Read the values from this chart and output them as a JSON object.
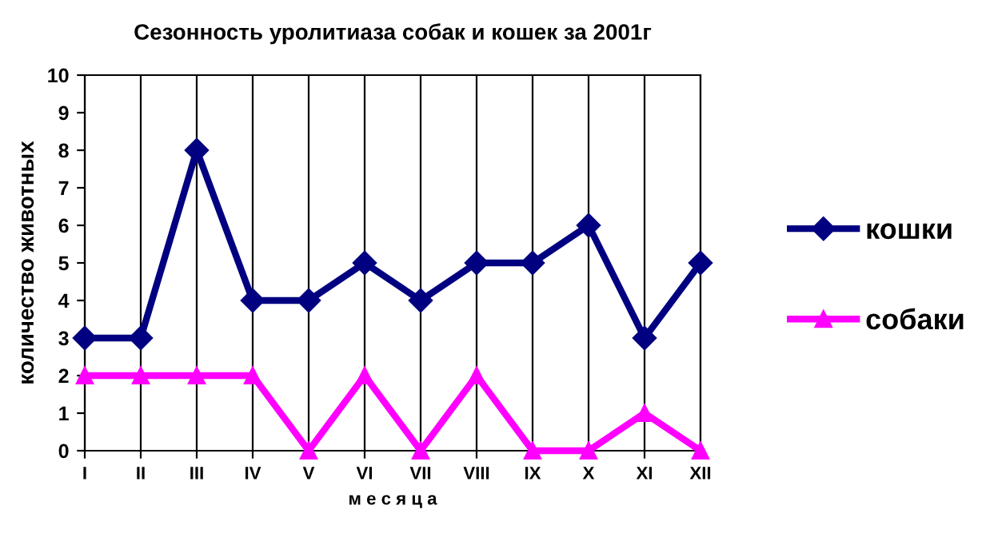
{
  "chart_data": {
    "type": "line",
    "title": "Сезонность уролитиаза собак и кошек за 2001г",
    "xlabel": "м е с я ц а",
    "ylabel": "количество животных",
    "categories": [
      "I",
      "II",
      "III",
      "IV",
      "V",
      "VI",
      "VII",
      "VIII",
      "IX",
      "X",
      "XI",
      "XII"
    ],
    "series": [
      {
        "name": "кошки",
        "color": "#000080",
        "marker": "diamond",
        "values": [
          3,
          3,
          8,
          4,
          4,
          5,
          4,
          5,
          5,
          6,
          3,
          5
        ]
      },
      {
        "name": "собаки",
        "color": "#ff00ff",
        "marker": "triangle",
        "values": [
          2,
          2,
          2,
          2,
          0,
          2,
          0,
          2,
          0,
          0,
          1,
          0
        ]
      }
    ],
    "ylim": [
      0,
      10
    ],
    "yticks": [
      0,
      1,
      2,
      3,
      4,
      5,
      6,
      7,
      8,
      9,
      10
    ],
    "grid": "x",
    "legend": "right",
    "line_style": "solid"
  }
}
